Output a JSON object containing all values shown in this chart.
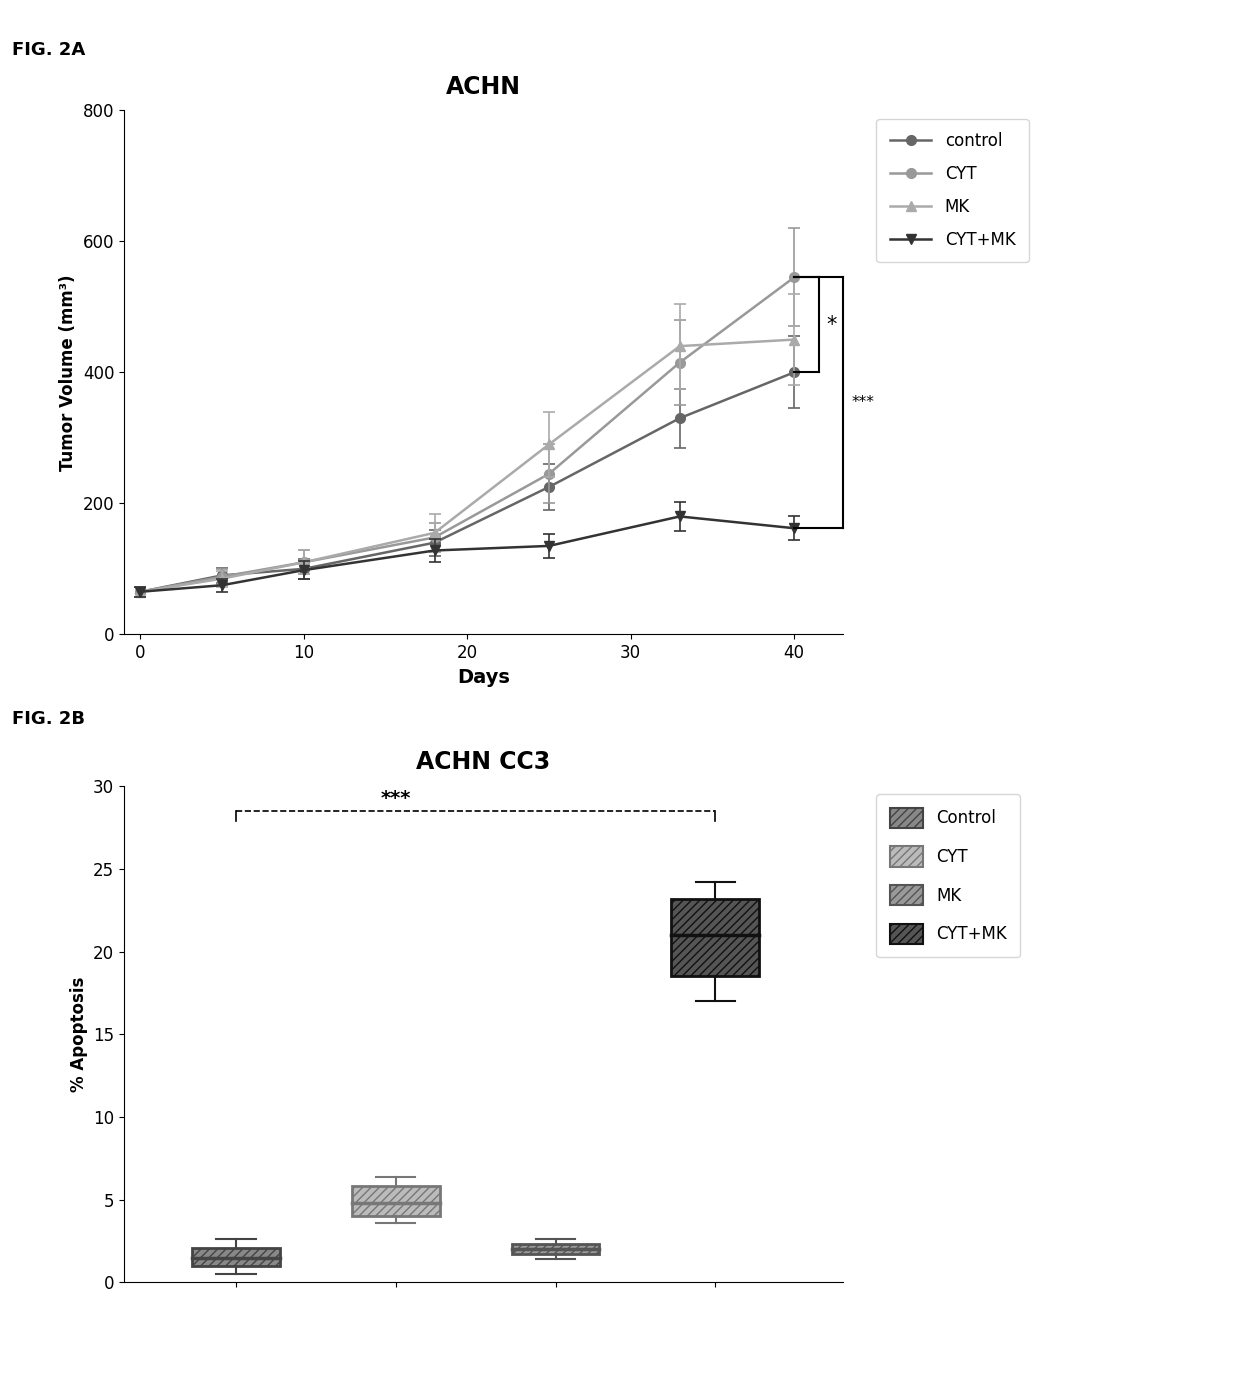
{
  "fig2a": {
    "title": "ACHN",
    "xlabel": "Days",
    "ylabel": "Tumor Volume (mm³)",
    "ylim": [
      0,
      800
    ],
    "yticks": [
      0,
      200,
      400,
      600,
      800
    ],
    "xlim": [
      -1,
      43
    ],
    "xticks": [
      0,
      10,
      20,
      30,
      40
    ],
    "days": [
      0,
      5,
      10,
      18,
      25,
      33,
      40
    ],
    "series_order": [
      "control",
      "CYT",
      "MK",
      "CYT+MK"
    ],
    "series": {
      "control": {
        "y": [
          65,
          90,
          100,
          140,
          225,
          330,
          400
        ],
        "yerr": [
          8,
          12,
          15,
          20,
          35,
          45,
          55
        ],
        "color": "#666666",
        "marker": "o",
        "label": "control"
      },
      "CYT": {
        "y": [
          65,
          88,
          110,
          148,
          245,
          415,
          545
        ],
        "yerr": [
          8,
          12,
          18,
          22,
          45,
          65,
          75
        ],
        "color": "#999999",
        "marker": "o",
        "label": "CYT"
      },
      "MK": {
        "y": [
          65,
          85,
          110,
          155,
          290,
          440,
          450
        ],
        "yerr": [
          8,
          12,
          18,
          28,
          50,
          65,
          70
        ],
        "color": "#aaaaaa",
        "marker": "^",
        "label": "MK"
      },
      "CYT+MK": {
        "y": [
          65,
          75,
          98,
          128,
          135,
          180,
          162
        ],
        "yerr": [
          8,
          10,
          14,
          18,
          18,
          22,
          18
        ],
        "color": "#333333",
        "marker": "v",
        "label": "CYT+MK"
      }
    }
  },
  "fig2b": {
    "title": "ACHN CC3",
    "ylabel": "% Apoptosis",
    "ylim": [
      0,
      30
    ],
    "yticks": [
      0,
      5,
      10,
      15,
      20,
      25,
      30
    ],
    "categories": [
      "Control",
      "CYT",
      "MK",
      "CYT+MK"
    ],
    "boxes": {
      "Control": {
        "Q1": 1.0,
        "median": 1.5,
        "Q3": 2.1,
        "whisker_low": 0.5,
        "whisker_high": 2.6,
        "facecolor": "#888888",
        "edgecolor": "#444444",
        "hatch": "////",
        "label": "Control"
      },
      "CYT": {
        "Q1": 4.0,
        "median": 4.8,
        "Q3": 5.8,
        "whisker_low": 3.6,
        "whisker_high": 6.4,
        "facecolor": "#bbbbbb",
        "edgecolor": "#777777",
        "hatch": "////",
        "label": "CYT"
      },
      "MK": {
        "Q1": 1.7,
        "median": 2.0,
        "Q3": 2.3,
        "whisker_low": 1.4,
        "whisker_high": 2.6,
        "facecolor": "#999999",
        "edgecolor": "#555555",
        "hatch": "////",
        "label": "MK"
      },
      "CYT+MK": {
        "Q1": 18.5,
        "median": 21.0,
        "Q3": 23.2,
        "whisker_low": 17.0,
        "whisker_high": 24.2,
        "facecolor": "#555555",
        "edgecolor": "#111111",
        "hatch": "////",
        "label": "CYT+MK"
      }
    }
  },
  "bg_color": "#ffffff"
}
